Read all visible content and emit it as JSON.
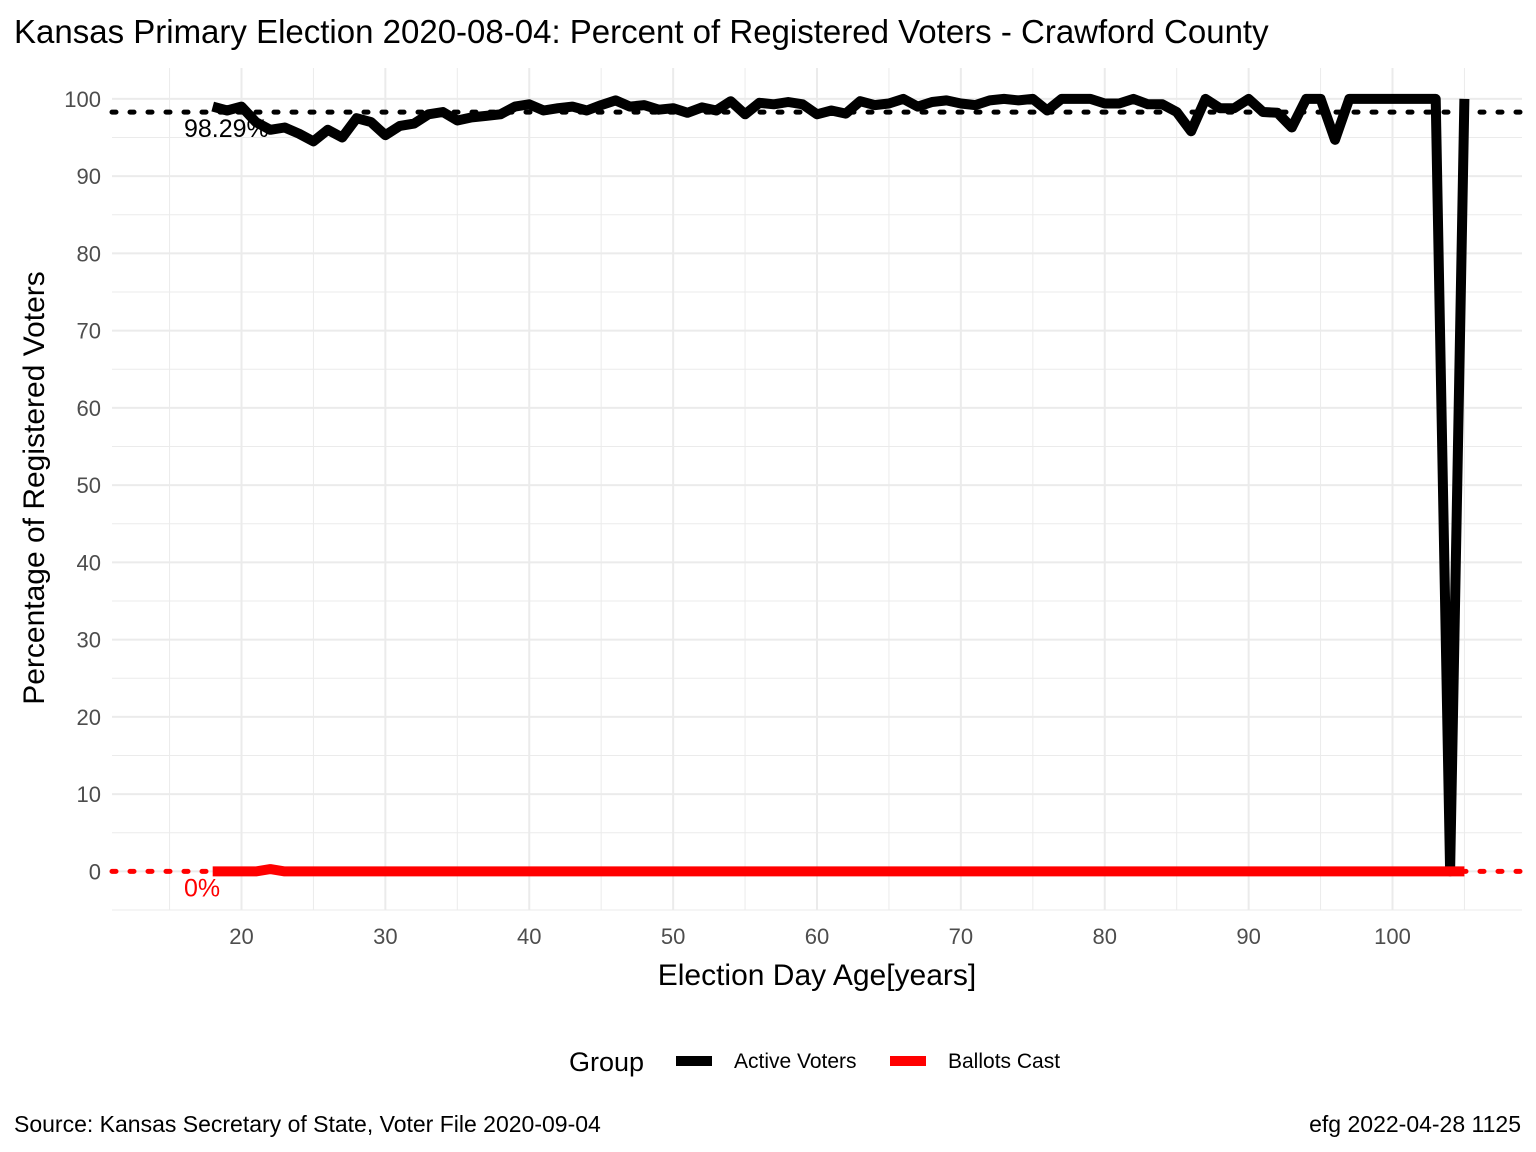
{
  "title": "Kansas Primary Election 2020-08-04:  Percent of Registered Voters - Crawford County",
  "xlabel": "Election Day Age[years]",
  "ylabel": "Percentage of Registered Voters",
  "caption_left": "Source:  Kansas Secretary of State, Voter File  2020-09-04",
  "caption_right": "efg 2022-04-28 1125",
  "legend": {
    "title": "Group",
    "position": "bottom"
  },
  "chart_data": {
    "type": "line",
    "title": "Kansas Primary Election 2020-08-04:  Percent of Registered Voters - Crawford County",
    "xlabel": "Election Day Age[years]",
    "ylabel": "Percentage of Registered Voters",
    "xlim": [
      11,
      109
    ],
    "ylim": [
      -5,
      104
    ],
    "x_ticks": [
      20,
      30,
      40,
      50,
      60,
      70,
      80,
      90,
      100
    ],
    "y_ticks": [
      0,
      10,
      20,
      30,
      40,
      50,
      60,
      70,
      80,
      90,
      100
    ],
    "grid": true,
    "series": [
      {
        "name": "Active Voters",
        "color": "#000000",
        "points": [
          [
            18,
            99.0
          ],
          [
            19,
            98.5
          ],
          [
            20,
            99.0
          ],
          [
            21,
            97.0
          ],
          [
            22,
            96.0
          ],
          [
            23,
            96.3
          ],
          [
            24,
            95.5
          ],
          [
            25,
            94.5
          ],
          [
            26,
            96.0
          ],
          [
            27,
            95.0
          ],
          [
            28,
            97.5
          ],
          [
            29,
            97.0
          ],
          [
            30,
            95.3
          ],
          [
            31,
            96.5
          ],
          [
            32,
            96.8
          ],
          [
            33,
            98.0
          ],
          [
            34,
            98.3
          ],
          [
            35,
            97.2
          ],
          [
            36,
            97.6
          ],
          [
            37,
            97.8
          ],
          [
            38,
            98.0
          ],
          [
            39,
            99.0
          ],
          [
            40,
            99.3
          ],
          [
            41,
            98.5
          ],
          [
            42,
            98.8
          ],
          [
            43,
            99.0
          ],
          [
            44,
            98.5
          ],
          [
            45,
            99.2
          ],
          [
            46,
            99.8
          ],
          [
            47,
            99.0
          ],
          [
            48,
            99.2
          ],
          [
            49,
            98.6
          ],
          [
            50,
            98.8
          ],
          [
            51,
            98.2
          ],
          [
            52,
            98.9
          ],
          [
            53,
            98.5
          ],
          [
            54,
            99.7
          ],
          [
            55,
            98.0
          ],
          [
            56,
            99.5
          ],
          [
            57,
            99.3
          ],
          [
            58,
            99.6
          ],
          [
            59,
            99.3
          ],
          [
            60,
            98.0
          ],
          [
            61,
            98.5
          ],
          [
            62,
            98.1
          ],
          [
            63,
            99.7
          ],
          [
            64,
            99.2
          ],
          [
            65,
            99.4
          ],
          [
            66,
            100.0
          ],
          [
            67,
            99.0
          ],
          [
            68,
            99.6
          ],
          [
            69,
            99.8
          ],
          [
            70,
            99.4
          ],
          [
            71,
            99.2
          ],
          [
            72,
            99.8
          ],
          [
            73,
            100.0
          ],
          [
            74,
            99.8
          ],
          [
            75,
            100.0
          ],
          [
            76,
            98.5
          ],
          [
            77,
            100.0
          ],
          [
            78,
            100.0
          ],
          [
            79,
            100.0
          ],
          [
            80,
            99.4
          ],
          [
            81,
            99.4
          ],
          [
            82,
            100.0
          ],
          [
            83,
            99.3
          ],
          [
            84,
            99.3
          ],
          [
            85,
            98.3
          ],
          [
            86,
            95.8
          ],
          [
            87,
            100.0
          ],
          [
            88,
            98.8
          ],
          [
            89,
            98.8
          ],
          [
            90,
            100.0
          ],
          [
            91,
            98.3
          ],
          [
            92,
            98.2
          ],
          [
            93,
            96.3
          ],
          [
            94,
            100.0
          ],
          [
            95,
            100.0
          ],
          [
            96,
            94.7
          ],
          [
            97,
            100.0
          ],
          [
            98,
            100.0
          ],
          [
            99,
            100.0
          ],
          [
            100,
            100.0
          ],
          [
            101,
            100.0
          ],
          [
            102,
            100.0
          ],
          [
            103,
            100.0
          ],
          [
            104,
            0.0
          ],
          [
            105,
            100.0
          ]
        ]
      },
      {
        "name": "Ballots Cast",
        "color": "#ff0000",
        "points": [
          [
            18,
            0.0
          ],
          [
            19,
            0.0
          ],
          [
            20,
            0.0
          ],
          [
            21,
            0.0
          ],
          [
            22,
            0.3
          ],
          [
            23,
            0.0
          ],
          [
            25,
            0.0
          ],
          [
            30,
            0.0
          ],
          [
            40,
            0.0
          ],
          [
            50,
            0.0
          ],
          [
            60,
            0.0
          ],
          [
            70,
            0.0
          ],
          [
            80,
            0.0
          ],
          [
            90,
            0.0
          ],
          [
            100,
            0.0
          ],
          [
            105,
            0.0
          ]
        ]
      }
    ],
    "reference_lines": [
      {
        "series": "Active Voters",
        "y": 98.29,
        "label": "98.29%",
        "label_x": 16,
        "color": "#000000"
      },
      {
        "series": "Ballots Cast",
        "y": 0,
        "label": "0%",
        "label_x": 16,
        "color": "#ff0000"
      }
    ]
  }
}
